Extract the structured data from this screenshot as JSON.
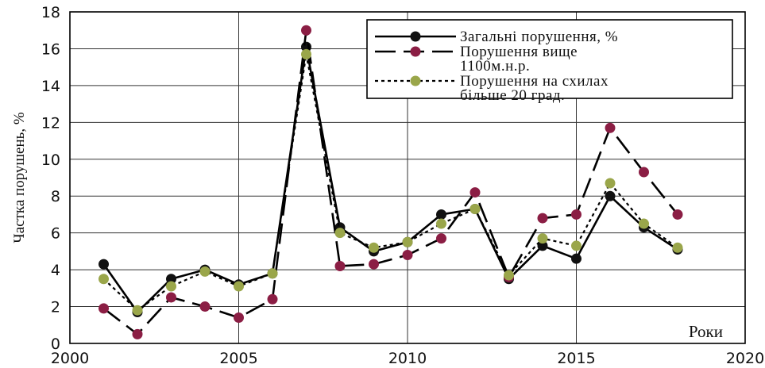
{
  "chart_data": {
    "type": "line",
    "xlabel": "Роки",
    "ylabel": "Частка порушень, %",
    "xlim": [
      2000,
      2020
    ],
    "ylim": [
      0,
      18
    ],
    "xticks": [
      2000,
      2005,
      2010,
      2015,
      2020
    ],
    "yticks": [
      0,
      2,
      4,
      6,
      8,
      10,
      12,
      14,
      16,
      18
    ],
    "grid": true,
    "legend_position": "top-right",
    "x": [
      2001,
      2002,
      2003,
      2004,
      2005,
      2006,
      2007,
      2008,
      2009,
      2010,
      2011,
      2012,
      2013,
      2014,
      2015,
      2016,
      2017,
      2018
    ],
    "series": [
      {
        "key": "s1",
        "name": "Загальні порушення, %",
        "legend_lines": [
          "Загальні порушення, %"
        ],
        "style": "solid",
        "line_color": "#000000",
        "marker_color": "#111111",
        "values": [
          4.3,
          1.7,
          3.5,
          4.0,
          3.2,
          3.8,
          16.1,
          6.3,
          5.0,
          5.5,
          7.0,
          7.3,
          3.5,
          5.3,
          4.6,
          8.0,
          6.3,
          5.1
        ]
      },
      {
        "key": "s2",
        "name": "Порушення вище 1100м.н.р.",
        "legend_lines": [
          "Порушення вище",
          "1100м.н.р."
        ],
        "style": "dashed",
        "line_color": "#000000",
        "marker_color": "#8b1e44",
        "values": [
          1.9,
          0.5,
          2.5,
          2.0,
          1.4,
          2.4,
          17.0,
          4.2,
          4.3,
          4.8,
          5.7,
          8.2,
          3.6,
          6.8,
          7.0,
          11.7,
          9.3,
          7.0
        ]
      },
      {
        "key": "s3",
        "name": "Порушення на схилах більше 20 град.",
        "legend_lines": [
          "Порушення на схилах",
          "більше 20 град."
        ],
        "style": "dotted",
        "line_color": "#000000",
        "marker_color": "#9aa64a",
        "values": [
          3.5,
          1.8,
          3.1,
          3.9,
          3.1,
          3.8,
          15.7,
          6.0,
          5.2,
          5.5,
          6.5,
          7.3,
          3.7,
          5.7,
          5.3,
          8.7,
          6.5,
          5.2
        ]
      }
    ]
  }
}
